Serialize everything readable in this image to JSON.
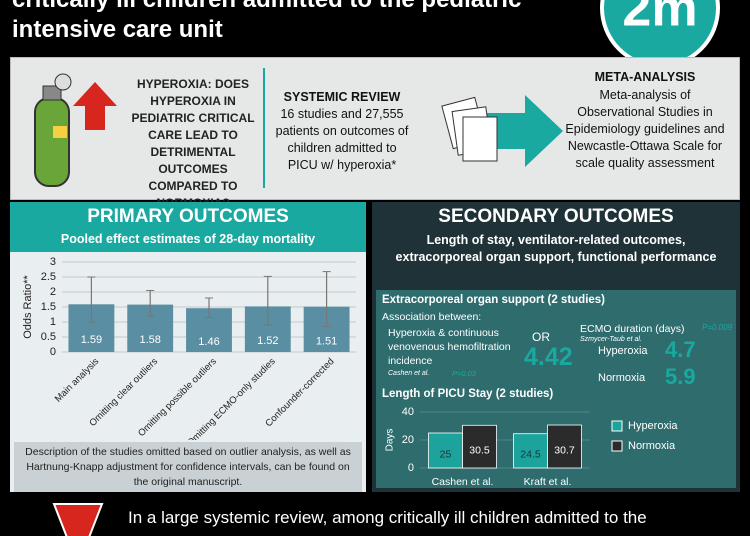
{
  "header": {
    "title_line1": "critically ill children admitted to the pediatric",
    "title_line2": "intensive care unit",
    "logo": "2m"
  },
  "overview": {
    "question": {
      "lead": "HYPEROXIA:",
      "text": "DOES HYPEROXIA IN PEDIATRIC CRITICAL CARE LEAD TO DETRIMENTAL OUTCOMES COMPARED TO NORMOXIA?"
    },
    "review": {
      "title": "SYSTEMIC REVIEW",
      "text": "16 studies and 27,555 patients on outcomes of children admitted to PICU w/ hyperoxia*"
    },
    "meta": {
      "title": "META-ANALYSIS",
      "text": "Meta-analysis of Observational Studies in Epidemiology guidelines and Newcastle-Ottawa Scale for scale quality assessment"
    }
  },
  "primary": {
    "heading": "PRIMARY OUTCOMES",
    "note": "Description of the studies omitted based on outlier analysis, as well as Hartnung-Knapp adjustment for confidence intervals, can be found on the original manuscript."
  },
  "secondary": {
    "heading": "SECONDARY OUTCOMES",
    "subtitle": "Length of stay, ventilator-related outcomes, extracorporeal organ support, functional performance",
    "ecmo_section": "Extracorporeal organ support (2 studies)",
    "association": "Association between:",
    "cvvh": "Hyperoxia & continuous venovenous hemofiltration incidence",
    "or_label": "OR",
    "or_value": "4.42",
    "or_source": "Cashen et al.",
    "or_p": "P=0.03",
    "ecmo_title": "ECMO duration (days)",
    "ecmo_p": "P=0.009",
    "ecmo_source": "Szmycer-Taub et al.",
    "hyperoxia_label": "Hyperoxia",
    "hyperoxia_value": "4.7",
    "normoxia_label": "Normoxia",
    "normoxia_value": "5.9"
  },
  "conclusion": {
    "text": "In a large systemic review, among critically ill children admitted to the"
  },
  "chart_data": [
    {
      "type": "bar",
      "title": "Pooled effect estimates of 28-day mortality",
      "y_label": "Odds Ratio**",
      "categories": [
        "Main analysis",
        "Omitting clear outliers",
        "Omitting possible outliers",
        "Omitting ECMO-only studies",
        "Confounder-corrected"
      ],
      "values": [
        1.59,
        1.58,
        1.46,
        1.52,
        1.51
      ],
      "ci_low": [
        1.0,
        1.2,
        1.15,
        0.9,
        0.85
      ],
      "ci_high": [
        2.5,
        2.05,
        1.8,
        2.52,
        2.68
      ],
      "color": "#5a8ea2",
      "ylim": [
        0,
        3
      ],
      "yticks": [
        0,
        0.5,
        1,
        1.5,
        2,
        2.5,
        3
      ],
      "grid": true
    },
    {
      "type": "grouped_bar",
      "title": "Length of PICU Stay (2 studies)",
      "y_label": "Days",
      "categories": [
        "Cashen et al.",
        "Kraft et al."
      ],
      "series": [
        {
          "name": "Hyperoxia",
          "color": "#1ba39c",
          "values": [
            25,
            24.5
          ]
        },
        {
          "name": "Normoxia",
          "color": "#2b2b2b",
          "values": [
            30.5,
            30.7
          ]
        }
      ],
      "ylim": [
        0,
        40
      ],
      "yticks": [
        0,
        20,
        40
      ],
      "legend": "right"
    }
  ]
}
